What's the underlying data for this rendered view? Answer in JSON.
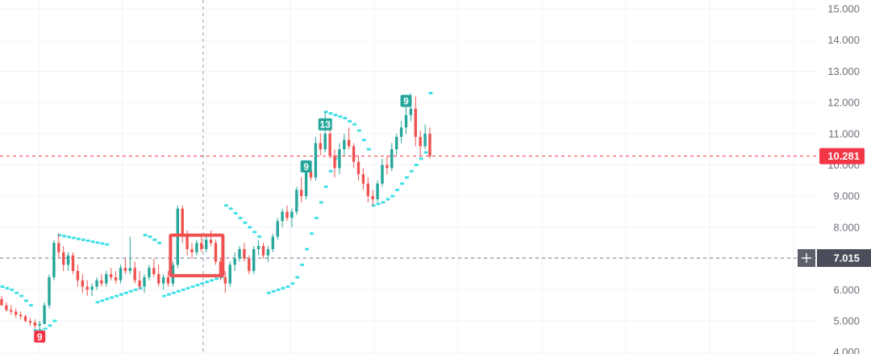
{
  "chart_data": {
    "type": "candlestick",
    "ylim": [
      4.0,
      15.0
    ],
    "y_ticks": [
      "15.000",
      "14.000",
      "13.000",
      "12.000",
      "11.000",
      "10.000",
      "9.000",
      "8.000",
      "7.000",
      "6.000",
      "5.000",
      "4.000"
    ],
    "grid": true,
    "last_price": {
      "label": "10.281",
      "value": 10.281,
      "color": "#f23645"
    },
    "crosshair": {
      "label": "7.015",
      "value": 7.015,
      "button_icon": "plus-icon"
    },
    "colors": {
      "up": "#26a69a",
      "down": "#ef5350",
      "dots": "#40e0e6",
      "box": "#f05050",
      "badge_up": "#26a69a",
      "badge_down": "#f23645"
    },
    "candles": [
      [
        5.7,
        5.8,
        5.5,
        5.5
      ],
      [
        5.5,
        5.6,
        5.3,
        5.35
      ],
      [
        5.35,
        5.5,
        5.2,
        5.3
      ],
      [
        5.3,
        5.4,
        5.1,
        5.2
      ],
      [
        5.2,
        5.3,
        5.05,
        5.15
      ],
      [
        5.15,
        5.2,
        4.95,
        5.0
      ],
      [
        5.0,
        5.1,
        4.85,
        4.95
      ],
      [
        4.95,
        5.05,
        4.75,
        4.85
      ],
      [
        4.85,
        5.0,
        4.7,
        4.9
      ],
      [
        4.9,
        5.6,
        4.9,
        5.5
      ],
      [
        5.5,
        6.5,
        5.4,
        6.4
      ],
      [
        6.4,
        7.6,
        6.3,
        7.5
      ],
      [
        7.5,
        7.8,
        7.0,
        7.2
      ],
      [
        7.2,
        7.4,
        6.6,
        6.8
      ],
      [
        6.8,
        7.2,
        6.6,
        7.1
      ],
      [
        7.1,
        7.2,
        6.5,
        6.6
      ],
      [
        6.6,
        6.8,
        6.1,
        6.3
      ],
      [
        6.3,
        6.5,
        5.9,
        6.1
      ],
      [
        6.1,
        6.3,
        5.8,
        6.0
      ],
      [
        6.0,
        6.2,
        5.8,
        6.1
      ],
      [
        6.1,
        6.4,
        6.0,
        6.3
      ],
      [
        6.3,
        6.5,
        6.1,
        6.2
      ],
      [
        6.2,
        6.6,
        6.1,
        6.5
      ],
      [
        6.5,
        6.7,
        6.3,
        6.4
      ],
      [
        6.4,
        6.6,
        6.2,
        6.3
      ],
      [
        6.3,
        6.8,
        6.2,
        6.7
      ],
      [
        6.7,
        7.0,
        6.5,
        6.6
      ],
      [
        6.6,
        7.7,
        6.5,
        6.7
      ],
      [
        6.7,
        6.9,
        6.2,
        6.3
      ],
      [
        6.3,
        6.6,
        6.0,
        6.1
      ],
      [
        6.1,
        6.5,
        5.9,
        6.4
      ],
      [
        6.4,
        6.8,
        6.3,
        6.7
      ],
      [
        6.7,
        7.0,
        6.4,
        6.5
      ],
      [
        6.5,
        6.8,
        6.1,
        6.2
      ],
      [
        6.2,
        6.5,
        6.0,
        6.4
      ],
      [
        6.4,
        6.6,
        6.1,
        6.2
      ],
      [
        6.2,
        6.9,
        6.1,
        6.8
      ],
      [
        6.8,
        8.7,
        6.7,
        8.6
      ],
      [
        8.6,
        8.7,
        7.5,
        7.7
      ],
      [
        7.7,
        7.9,
        7.1,
        7.3
      ],
      [
        7.3,
        7.5,
        7.0,
        7.2
      ],
      [
        7.2,
        7.6,
        7.1,
        7.5
      ],
      [
        7.5,
        7.7,
        7.2,
        7.3
      ],
      [
        7.3,
        7.8,
        7.2,
        7.6
      ],
      [
        7.6,
        7.9,
        7.4,
        7.5
      ],
      [
        7.5,
        7.6,
        6.8,
        6.9
      ],
      [
        6.9,
        7.0,
        6.3,
        6.4
      ],
      [
        6.4,
        6.6,
        5.9,
        6.2
      ],
      [
        6.2,
        6.9,
        6.1,
        6.8
      ],
      [
        6.8,
        7.2,
        6.6,
        7.0
      ],
      [
        7.0,
        7.4,
        6.9,
        7.3
      ],
      [
        7.3,
        7.5,
        6.9,
        7.0
      ],
      [
        7.0,
        7.1,
        6.5,
        6.6
      ],
      [
        6.6,
        7.4,
        6.5,
        7.3
      ],
      [
        7.3,
        7.6,
        7.1,
        7.4
      ],
      [
        7.4,
        7.5,
        7.0,
        7.1
      ],
      [
        7.1,
        7.4,
        6.9,
        7.3
      ],
      [
        7.3,
        7.8,
        7.2,
        7.7
      ],
      [
        7.7,
        8.3,
        7.6,
        8.2
      ],
      [
        8.2,
        8.6,
        8.0,
        8.5
      ],
      [
        8.5,
        8.7,
        8.2,
        8.3
      ],
      [
        8.3,
        8.6,
        8.0,
        8.5
      ],
      [
        8.5,
        9.3,
        8.4,
        9.2
      ],
      [
        9.2,
        9.6,
        8.8,
        9.0
      ],
      [
        9.0,
        10.0,
        8.9,
        9.8
      ],
      [
        9.8,
        10.1,
        9.5,
        9.6
      ],
      [
        9.6,
        10.9,
        9.5,
        10.7
      ],
      [
        10.7,
        11.0,
        10.3,
        10.5
      ],
      [
        10.5,
        11.7,
        10.4,
        11.0
      ],
      [
        11.0,
        11.3,
        10.2,
        10.3
      ],
      [
        10.3,
        10.5,
        9.6,
        9.9
      ],
      [
        9.9,
        10.7,
        9.7,
        10.5
      ],
      [
        10.5,
        11.0,
        10.3,
        10.8
      ],
      [
        10.8,
        11.2,
        10.5,
        10.6
      ],
      [
        10.6,
        10.7,
        9.9,
        10.1
      ],
      [
        10.1,
        10.3,
        9.5,
        9.7
      ],
      [
        9.7,
        9.9,
        9.2,
        9.4
      ],
      [
        9.4,
        9.6,
        8.8,
        9.0
      ],
      [
        9.0,
        9.2,
        8.7,
        8.9
      ],
      [
        8.9,
        9.5,
        8.8,
        9.4
      ],
      [
        9.4,
        10.2,
        9.3,
        10.0
      ],
      [
        10.0,
        10.3,
        9.7,
        9.9
      ],
      [
        9.9,
        10.7,
        9.8,
        10.5
      ],
      [
        10.5,
        11.0,
        10.3,
        10.9
      ],
      [
        10.9,
        11.4,
        10.7,
        11.2
      ],
      [
        11.2,
        11.9,
        11.0,
        11.6
      ],
      [
        11.6,
        12.3,
        11.4,
        11.8
      ],
      [
        11.8,
        12.2,
        10.6,
        10.9
      ],
      [
        10.9,
        11.1,
        10.3,
        10.6
      ],
      [
        10.6,
        11.3,
        10.5,
        11.0
      ],
      [
        11.0,
        11.2,
        10.2,
        10.281
      ]
    ],
    "parabolic_sar": [
      {
        "start": 0,
        "values": [
          6.1,
          6.05,
          6.0,
          5.9,
          5.8,
          5.65,
          5.5
        ]
      },
      {
        "start": 7,
        "values": [
          4.7,
          4.7,
          4.75,
          4.85,
          5.0
        ]
      },
      {
        "start": 12,
        "values": [
          7.75,
          7.72,
          7.69,
          7.66,
          7.63,
          7.6,
          7.57,
          7.54,
          7.51,
          7.48,
          7.45
        ]
      },
      {
        "start": 20,
        "values": [
          5.6,
          5.65,
          5.7,
          5.75,
          5.8,
          5.85,
          5.9,
          5.95,
          6.0,
          6.05
        ]
      },
      {
        "start": 30,
        "values": [
          7.75,
          7.7,
          7.6,
          7.5
        ]
      },
      {
        "start": 34,
        "values": [
          5.8,
          5.85,
          5.9,
          5.95,
          6.0,
          6.05,
          6.1,
          6.15,
          6.2,
          6.25,
          6.3,
          6.35,
          6.4
        ]
      },
      {
        "start": 47,
        "values": [
          8.7,
          8.6,
          8.45,
          8.3,
          8.15,
          8.0,
          7.85,
          7.7
        ]
      },
      {
        "start": 56,
        "values": [
          5.9,
          5.95,
          6.0,
          6.05,
          6.1,
          6.2,
          6.4,
          6.8,
          7.3,
          7.8,
          8.3,
          8.8,
          9.3,
          9.8,
          10.2
        ]
      },
      {
        "start": 68,
        "values": [
          11.7,
          11.65,
          11.6,
          11.55,
          11.5,
          11.4,
          11.3,
          11.1,
          10.8,
          10.5
        ]
      },
      {
        "start": 78,
        "values": [
          8.7,
          8.75,
          8.8,
          8.9,
          9.0,
          9.2,
          9.4,
          9.6,
          9.8,
          10.0,
          10.2,
          10.4
        ]
      },
      {
        "start": 90,
        "values": [
          12.3
        ]
      }
    ],
    "markers": [
      {
        "label": "9",
        "candle": 8,
        "price": 4.5,
        "color": "#f23645"
      },
      {
        "label": "9",
        "candle": 64,
        "price": 9.95,
        "color": "#26a69a"
      },
      {
        "label": "13",
        "candle": 68,
        "price": 11.3,
        "color": "#26a69a"
      },
      {
        "label": "9",
        "candle": 85,
        "price": 12.05,
        "color": "#26a69a"
      }
    ],
    "highlight_box": {
      "from_candle": 36,
      "to_candle": 46,
      "top": 7.75,
      "bottom": 6.45
    }
  }
}
